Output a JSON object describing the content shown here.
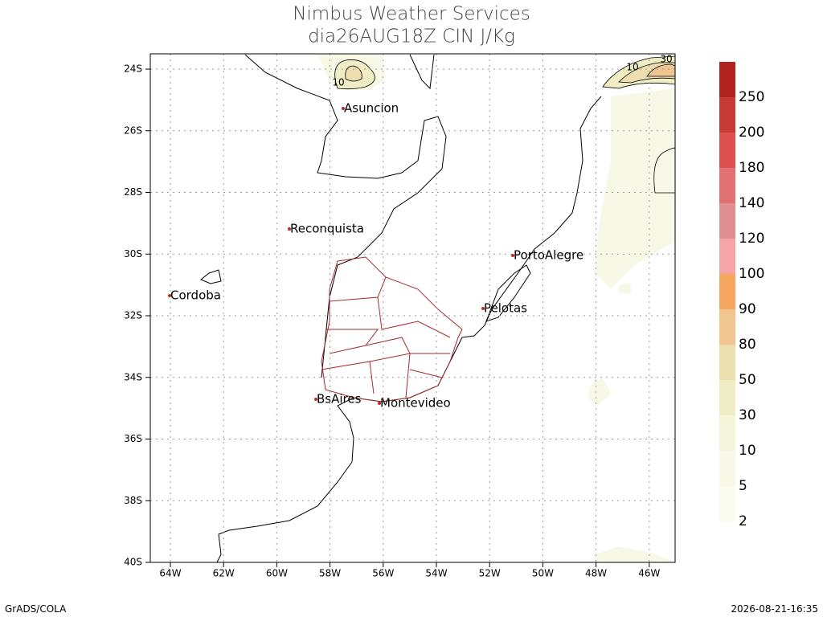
{
  "header": {
    "title": "Nimbus Weather Services",
    "subtitle": "dia26AUG18Z CIN J/Kg"
  },
  "map": {
    "lat_labels": [
      "24S",
      "26S",
      "28S",
      "30S",
      "32S",
      "34S",
      "36S",
      "38S",
      "40S"
    ],
    "lon_labels": [
      "64W",
      "62W",
      "60W",
      "58W",
      "56W",
      "54W",
      "52W",
      "50W",
      "48W",
      "46W"
    ],
    "cities": [
      "Asuncion",
      "Reconquista",
      "Cordoba",
      "PortoAlegre",
      "Pelotas",
      "BsAires",
      "Montevideo"
    ],
    "contour_labels": [
      "10",
      "10",
      "30"
    ]
  },
  "colorbar": {
    "labels": [
      "250",
      "200",
      "180",
      "140",
      "120",
      "100",
      "90",
      "80",
      "50",
      "30",
      "10",
      "5",
      "2"
    ],
    "colors": [
      "#b2221f",
      "#c63b36",
      "#df5050",
      "#e27171",
      "#e18f8f",
      "#f5a5a5",
      "#f6a65f",
      "#f1c58f",
      "#eedfb0",
      "#f0edc4",
      "#f4f5d9",
      "#f7f9e6",
      "#fafcef"
    ]
  },
  "footer": {
    "left": "GrADS/COLA",
    "right": "2026-08-21-16:35"
  }
}
